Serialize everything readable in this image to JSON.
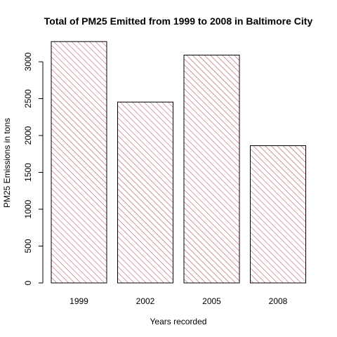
{
  "chart_data": {
    "type": "bar",
    "title": "Total of PM25 Emitted from 1999 to 2008 in Baltimore City",
    "xlabel": "Years recorded",
    "ylabel": "PM25 Emissions in tons",
    "categories": [
      "1999",
      "2002",
      "2005",
      "2008"
    ],
    "values": [
      3274,
      2454,
      3091,
      1862
    ],
    "ylim": [
      0,
      3300
    ],
    "yticks": [
      0,
      500,
      1000,
      1500,
      2000,
      2500,
      3000
    ],
    "grid": false,
    "legend": "none",
    "bar_fill": "hatched",
    "hatch_color": "#b03a48",
    "border_color": "#000000"
  }
}
